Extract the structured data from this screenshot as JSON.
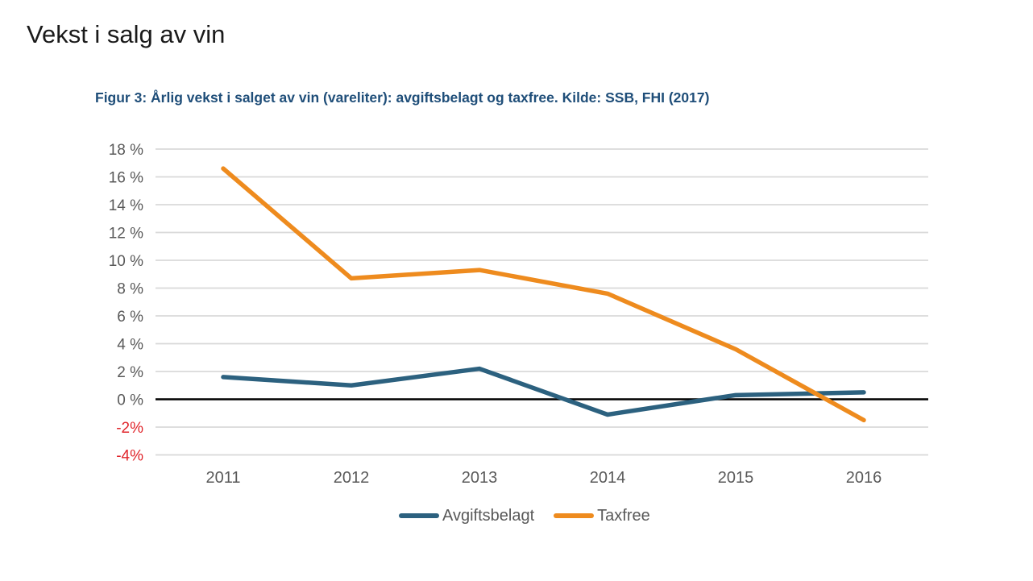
{
  "page": {
    "title": "Vekst i salg av vin"
  },
  "figure": {
    "caption": "Figur 3: Årlig vekst i salget av vin (vareliter): avgiftsbelagt og taxfree. Kilde: SSB, FHI (2017)"
  },
  "chart_data": {
    "type": "line",
    "title": "Figur 3: Årlig vekst i salget av vin (vareliter): avgiftsbelagt og taxfree. Kilde: SSB, FHI (2017)",
    "categories": [
      "2011",
      "2012",
      "2013",
      "2014",
      "2015",
      "2016"
    ],
    "series": [
      {
        "name": "Avgiftsbelagt",
        "color": "#2C617F",
        "values": [
          1.6,
          1.0,
          2.2,
          -1.1,
          0.3,
          0.5
        ]
      },
      {
        "name": "Taxfree",
        "color": "#EE8B1E",
        "values": [
          16.6,
          8.7,
          9.3,
          7.6,
          3.6,
          -1.5
        ]
      }
    ],
    "xlabel": "",
    "ylabel": "",
    "ylim": [
      -4,
      18
    ],
    "ytick_step": 2,
    "yticks": [
      {
        "value": 18,
        "label": "18 %"
      },
      {
        "value": 16,
        "label": "16 %"
      },
      {
        "value": 14,
        "label": "14 %"
      },
      {
        "value": 12,
        "label": "12 %"
      },
      {
        "value": 10,
        "label": "10 %"
      },
      {
        "value": 8,
        "label": "8 %"
      },
      {
        "value": 6,
        "label": "6 %"
      },
      {
        "value": 4,
        "label": "4 %"
      },
      {
        "value": 2,
        "label": "2 %"
      },
      {
        "value": 0,
        "label": "0 %"
      },
      {
        "value": -2,
        "label": "-2%",
        "negative": true
      },
      {
        "value": -4,
        "label": "-4%",
        "negative": true
      }
    ],
    "grid": true,
    "zero_line": true,
    "legend_position": "bottom"
  },
  "colors": {
    "background": "#FFFFFF",
    "title_text": "#1A1A1A",
    "caption_text": "#1F4E79",
    "axis_label": "#595959",
    "negative_label": "#E0252B",
    "gridline": "#D9D9D9",
    "zero_line": "#000000",
    "avgiftsbelagt_line": "#2C617F",
    "taxfree_line": "#EE8B1E"
  }
}
